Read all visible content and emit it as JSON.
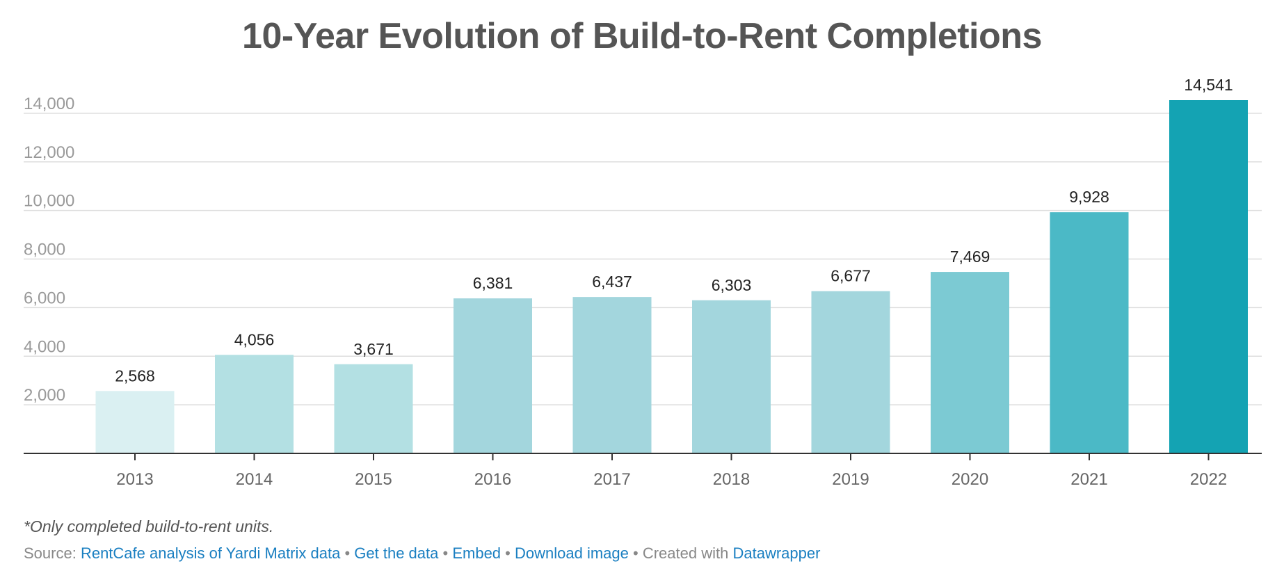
{
  "chart_data": {
    "type": "bar",
    "title": "10-Year Evolution of Build-to-Rent Completions",
    "categories": [
      "2013",
      "2014",
      "2015",
      "2016",
      "2017",
      "2018",
      "2019",
      "2020",
      "2021",
      "2022"
    ],
    "values": [
      2568,
      4056,
      3671,
      6381,
      6437,
      6303,
      6677,
      7469,
      9928,
      14541
    ],
    "value_labels": [
      "2,568",
      "4,056",
      "3,671",
      "6,381",
      "6,437",
      "6,303",
      "6,677",
      "7,469",
      "9,928",
      "14,541"
    ],
    "colors": [
      "#daf0f2",
      "#b3e0e3",
      "#b3e0e3",
      "#a3d6dd",
      "#a3d6dd",
      "#a3d6dd",
      "#a3d6dd",
      "#7ccad3",
      "#4bb9c6",
      "#14a3b3"
    ],
    "yticks": [
      2000,
      4000,
      6000,
      8000,
      10000,
      12000,
      14000
    ],
    "ytick_labels": [
      "2,000",
      "4,000",
      "6,000",
      "8,000",
      "10,000",
      "12,000",
      "14,000"
    ],
    "ylim": [
      0,
      14541
    ],
    "grid": true,
    "xlabel": "",
    "ylabel": ""
  },
  "note": "*Only completed build-to-rent units.",
  "footer": {
    "source_prefix": "Source:",
    "source_link": "RentCafe analysis of Yardi Matrix data",
    "sep": "•",
    "get_data": "Get the data",
    "embed": "Embed",
    "download": "Download image",
    "created_with": "Created with",
    "datawrapper": "Datawrapper"
  }
}
